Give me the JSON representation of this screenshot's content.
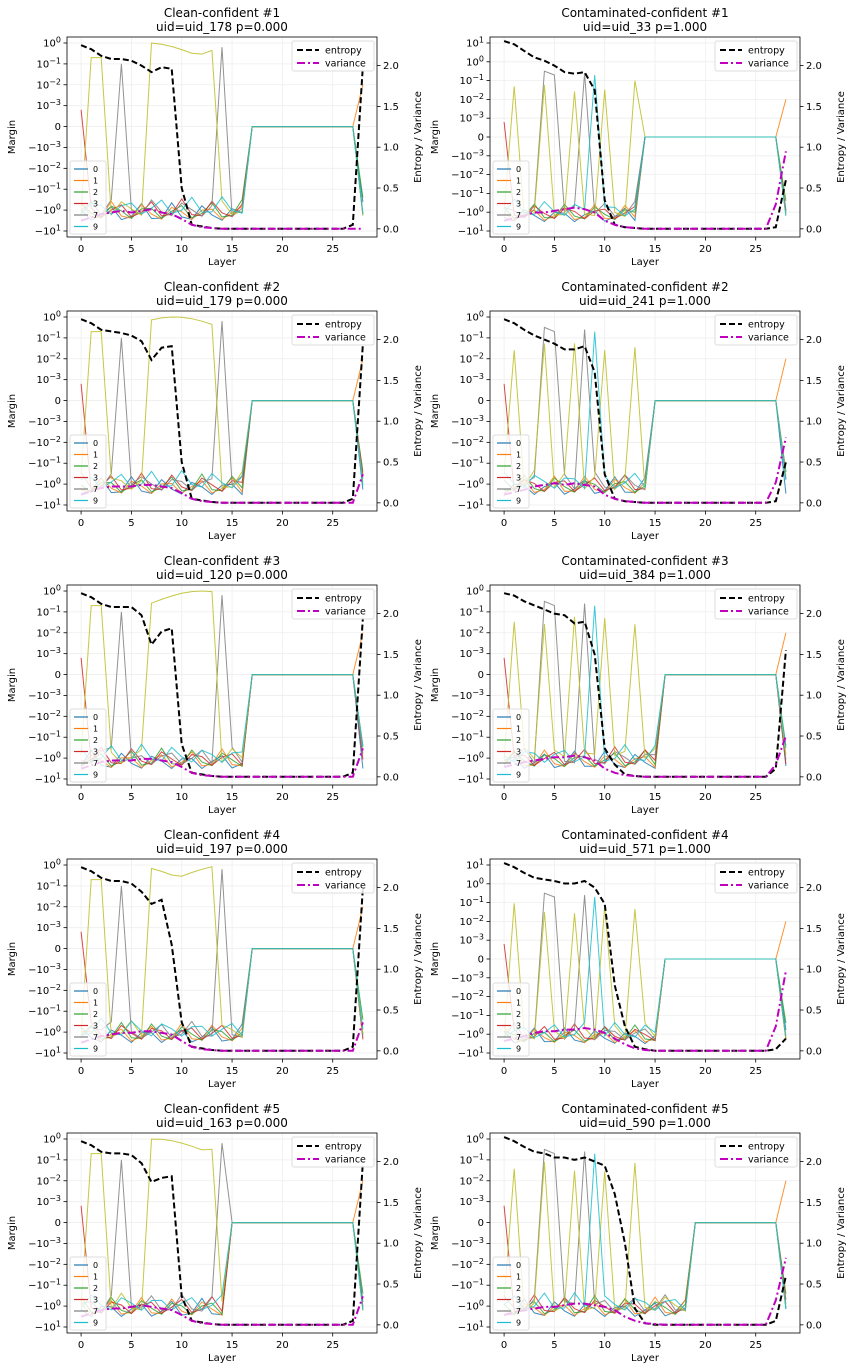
{
  "figure": {
    "series_colors": {
      "0": "#1f77b4",
      "1": "#ff7f0e",
      "2": "#2ca02c",
      "3": "#d62728",
      "7": "#7f7f7f",
      "8": "#bcbd22",
      "9": "#17becf",
      "entropy": "#000000",
      "variance": "#bf00bf"
    }
  },
  "chart_data": [
    {
      "type": "line",
      "title": "Clean-confident #1",
      "subtitle": "uid=uid_178   p=0.000",
      "xlabel": "Layer",
      "ylabel": "Margin",
      "y2label": "Entropy / Variance",
      "xlim": [
        -1.4,
        29.4
      ],
      "xticks": [
        0,
        5,
        10,
        15,
        20,
        25
      ],
      "y_scale": "symlog",
      "yticks": [
        "10^0",
        "10^-1",
        "10^-2",
        "10^-3",
        "0",
        "-10^-3",
        "-10^-2",
        "-10^-1",
        "-10^0",
        "-10^1"
      ],
      "y2lim": [
        -0.1,
        2.35
      ],
      "y2ticks": [
        "0.0",
        "0.5",
        "1.0",
        "1.5",
        "2.0"
      ],
      "grid": true,
      "legend_margin": {
        "location": "lower left",
        "entries": [
          "0",
          "1",
          "2",
          "3",
          "7",
          "9"
        ]
      },
      "legend_right": {
        "location": "upper right",
        "entries": [
          "entropy",
          "variance"
        ]
      },
      "entropy": [
        2.25,
        2.2,
        2.12,
        2.08,
        2.08,
        2.06,
        2.0,
        1.92,
        1.98,
        1.96,
        0.5,
        0.05,
        0.03,
        0.01,
        0.0,
        0.0,
        0.0,
        0.0,
        0.0,
        0.0,
        0.0,
        0.0,
        0.0,
        0.0,
        0.0,
        0.0,
        0.0,
        0.05,
        2.0
      ],
      "variance": [
        0.1,
        0.14,
        0.18,
        0.2,
        0.22,
        0.2,
        0.22,
        0.24,
        0.2,
        0.18,
        0.12,
        0.05,
        0.02,
        0.01,
        0.0,
        0.0,
        0.0,
        0.0,
        0.0,
        0.0,
        0.0,
        0.0,
        0.0,
        0.0,
        0.0,
        0.0,
        0.0,
        0.0,
        0.0
      ]
    },
    {
      "type": "line",
      "title": "Contaminated-confident #1",
      "subtitle": "uid=uid_33   p=1.000",
      "xlabel": "Layer",
      "ylabel": "Margin",
      "y2label": "Entropy / Variance",
      "xlim": [
        -1.4,
        29.4
      ],
      "xticks": [
        0,
        5,
        10,
        15,
        20,
        25
      ],
      "y_scale": "symlog",
      "yticks": [
        "10^1",
        "10^0",
        "10^-1",
        "10^-2",
        "10^-3",
        "0",
        "-10^-3",
        "-10^-2",
        "-10^-1",
        "-10^0",
        "-10^1"
      ],
      "y2lim": [
        -0.1,
        2.35
      ],
      "y2ticks": [
        "0.0",
        "0.5",
        "1.0",
        "1.5",
        "2.0"
      ],
      "grid": true,
      "legend_margin": {
        "location": "lower left",
        "entries": [
          "0",
          "1",
          "2",
          "3",
          "7",
          "9"
        ]
      },
      "legend_right": {
        "location": "upper right",
        "entries": [
          "entropy",
          "variance"
        ]
      },
      "entropy": [
        2.3,
        2.26,
        2.18,
        2.1,
        2.06,
        2.0,
        1.92,
        1.9,
        1.92,
        1.7,
        0.35,
        0.05,
        0.02,
        0.01,
        0.0,
        0.0,
        0.0,
        0.0,
        0.0,
        0.0,
        0.0,
        0.0,
        0.0,
        0.0,
        0.0,
        0.0,
        0.0,
        0.02,
        0.6
      ],
      "variance": [
        0.1,
        0.13,
        0.16,
        0.2,
        0.2,
        0.22,
        0.24,
        0.26,
        0.24,
        0.2,
        0.1,
        0.05,
        0.02,
        0.01,
        0.0,
        0.0,
        0.0,
        0.0,
        0.0,
        0.0,
        0.0,
        0.0,
        0.0,
        0.0,
        0.0,
        0.0,
        0.0,
        0.3,
        0.95
      ]
    },
    {
      "type": "line",
      "title": "Clean-confident #2",
      "subtitle": "uid=uid_179   p=0.000",
      "xlabel": "Layer",
      "ylabel": "Margin",
      "y2label": "Entropy / Variance",
      "xlim": [
        -1.4,
        29.4
      ],
      "xticks": [
        0,
        5,
        10,
        15,
        20,
        25
      ],
      "y_scale": "symlog",
      "yticks": [
        "10^0",
        "10^-1",
        "10^-2",
        "10^-3",
        "0",
        "-10^-3",
        "-10^-2",
        "-10^-1",
        "-10^0",
        "-10^1"
      ],
      "y2lim": [
        -0.1,
        2.35
      ],
      "y2ticks": [
        "0.0",
        "0.5",
        "1.0",
        "1.5",
        "2.0"
      ],
      "grid": true,
      "legend_margin": {
        "location": "lower left",
        "entries": [
          "0",
          "1",
          "2",
          "3",
          "7",
          "9"
        ]
      },
      "legend_right": {
        "location": "upper right",
        "entries": [
          "entropy",
          "variance"
        ]
      },
      "entropy": [
        2.25,
        2.2,
        2.12,
        2.1,
        2.08,
        2.05,
        1.98,
        1.75,
        1.9,
        1.92,
        0.5,
        0.05,
        0.03,
        0.01,
        0.0,
        0.0,
        0.0,
        0.0,
        0.0,
        0.0,
        0.0,
        0.0,
        0.0,
        0.0,
        0.0,
        0.0,
        0.0,
        0.05,
        1.95
      ],
      "variance": [
        0.1,
        0.14,
        0.18,
        0.2,
        0.2,
        0.2,
        0.22,
        0.22,
        0.2,
        0.18,
        0.12,
        0.05,
        0.02,
        0.01,
        0.0,
        0.0,
        0.0,
        0.0,
        0.0,
        0.0,
        0.0,
        0.0,
        0.0,
        0.0,
        0.0,
        0.0,
        0.0,
        0.0,
        0.35
      ]
    },
    {
      "type": "line",
      "title": "Contaminated-confident #2",
      "subtitle": "uid=uid_241   p=1.000",
      "xlabel": "Layer",
      "ylabel": "Margin",
      "y2label": "Entropy / Variance",
      "xlim": [
        -1.4,
        29.4
      ],
      "xticks": [
        0,
        5,
        10,
        15,
        20,
        25
      ],
      "y_scale": "symlog",
      "yticks": [
        "10^0",
        "10^-1",
        "10^-2",
        "10^-3",
        "0",
        "-10^-3",
        "-10^-2",
        "-10^-1",
        "-10^0",
        "-10^1"
      ],
      "y2lim": [
        -0.1,
        2.35
      ],
      "y2ticks": [
        "0.0",
        "0.5",
        "1.0",
        "1.5",
        "2.0"
      ],
      "grid": true,
      "legend_margin": {
        "location": "lower left",
        "entries": [
          "0",
          "1",
          "2",
          "3",
          "7",
          "9"
        ]
      },
      "legend_right": {
        "location": "upper right",
        "entries": [
          "entropy",
          "variance"
        ]
      },
      "entropy": [
        2.25,
        2.2,
        2.12,
        2.05,
        2.0,
        1.95,
        1.88,
        1.88,
        1.92,
        1.6,
        0.35,
        0.05,
        0.02,
        0.01,
        0.0,
        0.0,
        0.0,
        0.0,
        0.0,
        0.0,
        0.0,
        0.0,
        0.0,
        0.0,
        0.0,
        0.0,
        0.0,
        0.02,
        0.5
      ],
      "variance": [
        0.1,
        0.13,
        0.16,
        0.2,
        0.22,
        0.24,
        0.22,
        0.24,
        0.22,
        0.2,
        0.1,
        0.05,
        0.02,
        0.01,
        0.0,
        0.0,
        0.0,
        0.0,
        0.0,
        0.0,
        0.0,
        0.0,
        0.0,
        0.0,
        0.0,
        0.0,
        0.0,
        0.25,
        0.8
      ]
    },
    {
      "type": "line",
      "title": "Clean-confident #3",
      "subtitle": "uid=uid_120   p=0.000",
      "xlabel": "Layer",
      "ylabel": "Margin",
      "y2label": "Entropy / Variance",
      "xlim": [
        -1.4,
        29.4
      ],
      "xticks": [
        0,
        5,
        10,
        15,
        20,
        25
      ],
      "y_scale": "symlog",
      "yticks": [
        "10^0",
        "10^-1",
        "10^-2",
        "10^-3",
        "0",
        "-10^-3",
        "-10^-2",
        "-10^-1",
        "-10^0",
        "-10^1"
      ],
      "y2lim": [
        -0.1,
        2.35
      ],
      "y2ticks": [
        "0.0",
        "0.5",
        "1.0",
        "1.5",
        "2.0"
      ],
      "grid": true,
      "legend_margin": {
        "location": "lower left",
        "entries": [
          "0",
          "1",
          "2",
          "3",
          "7",
          "9"
        ]
      },
      "legend_right": {
        "location": "upper right",
        "entries": [
          "entropy",
          "variance"
        ]
      },
      "entropy": [
        2.25,
        2.2,
        2.12,
        2.08,
        2.08,
        2.08,
        1.98,
        1.62,
        1.78,
        1.82,
        0.4,
        0.05,
        0.03,
        0.01,
        0.0,
        0.0,
        0.0,
        0.0,
        0.0,
        0.0,
        0.0,
        0.0,
        0.0,
        0.0,
        0.0,
        0.0,
        0.0,
        0.05,
        1.95
      ],
      "variance": [
        0.1,
        0.14,
        0.18,
        0.2,
        0.2,
        0.2,
        0.22,
        0.22,
        0.2,
        0.18,
        0.12,
        0.05,
        0.02,
        0.01,
        0.0,
        0.0,
        0.0,
        0.0,
        0.0,
        0.0,
        0.0,
        0.0,
        0.0,
        0.0,
        0.0,
        0.0,
        0.0,
        0.0,
        0.35
      ]
    },
    {
      "type": "line",
      "title": "Contaminated-confident #3",
      "subtitle": "uid=uid_384   p=1.000",
      "xlabel": "Layer",
      "ylabel": "Margin",
      "y2label": "Entropy / Variance",
      "xlim": [
        -1.4,
        29.4
      ],
      "xticks": [
        0,
        5,
        10,
        15,
        20,
        25
      ],
      "y_scale": "symlog",
      "yticks": [
        "10^0",
        "10^-1",
        "10^-2",
        "10^-3",
        "0",
        "-10^-3",
        "-10^-2",
        "-10^-1",
        "-10^0",
        "-10^1"
      ],
      "y2lim": [
        -0.1,
        2.35
      ],
      "y2ticks": [
        "0.0",
        "0.5",
        "1.0",
        "1.5",
        "2.0"
      ],
      "grid": true,
      "legend_margin": {
        "location": "lower left",
        "entries": [
          "0",
          "1",
          "2",
          "3",
          "7",
          "9"
        ]
      },
      "legend_right": {
        "location": "upper right",
        "entries": [
          "entropy",
          "variance"
        ]
      },
      "entropy": [
        2.25,
        2.22,
        2.15,
        2.1,
        2.05,
        2.0,
        1.98,
        1.88,
        1.9,
        1.5,
        0.35,
        0.15,
        0.03,
        0.01,
        0.0,
        0.0,
        0.0,
        0.0,
        0.0,
        0.0,
        0.0,
        0.0,
        0.0,
        0.0,
        0.0,
        0.0,
        0.0,
        0.1,
        1.55
      ],
      "variance": [
        0.12,
        0.15,
        0.18,
        0.2,
        0.22,
        0.24,
        0.24,
        0.26,
        0.24,
        0.2,
        0.1,
        0.05,
        0.02,
        0.01,
        0.0,
        0.0,
        0.0,
        0.0,
        0.0,
        0.0,
        0.0,
        0.0,
        0.0,
        0.0,
        0.0,
        0.0,
        0.0,
        0.15,
        0.5
      ]
    },
    {
      "type": "line",
      "title": "Clean-confident #4",
      "subtitle": "uid=uid_197   p=0.000",
      "xlabel": "Layer",
      "ylabel": "Margin",
      "y2label": "Entropy / Variance",
      "xlim": [
        -1.4,
        29.4
      ],
      "xticks": [
        0,
        5,
        10,
        15,
        20,
        25
      ],
      "y_scale": "symlog",
      "yticks": [
        "10^0",
        "10^-1",
        "10^-2",
        "10^-3",
        "0",
        "-10^-3",
        "-10^-2",
        "-10^-1",
        "-10^0",
        "-10^1"
      ],
      "y2lim": [
        -0.1,
        2.35
      ],
      "y2ticks": [
        "0.0",
        "0.5",
        "1.0",
        "1.5",
        "2.0"
      ],
      "grid": true,
      "legend_margin": {
        "location": "lower left",
        "entries": [
          "0",
          "1",
          "2",
          "3",
          "7",
          "9"
        ]
      },
      "legend_right": {
        "location": "upper right",
        "entries": [
          "entropy",
          "variance"
        ]
      },
      "entropy": [
        2.25,
        2.2,
        2.12,
        2.08,
        2.08,
        2.05,
        1.95,
        1.8,
        1.85,
        1.3,
        0.35,
        0.05,
        0.03,
        0.01,
        0.0,
        0.0,
        0.0,
        0.0,
        0.0,
        0.0,
        0.0,
        0.0,
        0.0,
        0.0,
        0.0,
        0.0,
        0.0,
        0.05,
        2.0
      ],
      "variance": [
        0.1,
        0.14,
        0.18,
        0.2,
        0.22,
        0.22,
        0.24,
        0.24,
        0.22,
        0.2,
        0.12,
        0.05,
        0.02,
        0.01,
        0.0,
        0.0,
        0.0,
        0.0,
        0.0,
        0.0,
        0.0,
        0.0,
        0.0,
        0.0,
        0.0,
        0.0,
        0.0,
        0.0,
        0.35
      ]
    },
    {
      "type": "line",
      "title": "Contaminated-confident #4",
      "subtitle": "uid=uid_571   p=1.000",
      "xlabel": "Layer",
      "ylabel": "Margin",
      "y2label": "Entropy / Variance",
      "xlim": [
        -1.4,
        29.4
      ],
      "xticks": [
        0,
        5,
        10,
        15,
        20,
        25
      ],
      "y_scale": "symlog",
      "yticks": [
        "10^1",
        "10^0",
        "10^-1",
        "10^-2",
        "10^-3",
        "0",
        "-10^-3",
        "-10^-2",
        "-10^-1",
        "-10^0",
        "-10^1"
      ],
      "y2lim": [
        -0.1,
        2.35
      ],
      "y2ticks": [
        "0.0",
        "0.5",
        "1.0",
        "1.5",
        "2.0"
      ],
      "grid": true,
      "legend_margin": {
        "location": "lower left",
        "entries": [
          "0",
          "1",
          "2",
          "3",
          "7",
          "9"
        ]
      },
      "legend_right": {
        "location": "upper right",
        "entries": [
          "entropy",
          "variance"
        ]
      },
      "entropy": [
        2.3,
        2.25,
        2.18,
        2.12,
        2.1,
        2.08,
        2.05,
        2.05,
        2.08,
        2.0,
        1.8,
        0.8,
        0.3,
        0.05,
        0.02,
        0.0,
        0.0,
        0.0,
        0.0,
        0.0,
        0.0,
        0.0,
        0.0,
        0.0,
        0.0,
        0.0,
        0.0,
        0.02,
        0.15
      ],
      "variance": [
        0.12,
        0.15,
        0.18,
        0.22,
        0.24,
        0.24,
        0.26,
        0.26,
        0.28,
        0.26,
        0.22,
        0.15,
        0.08,
        0.03,
        0.01,
        0.0,
        0.0,
        0.0,
        0.0,
        0.0,
        0.0,
        0.0,
        0.0,
        0.0,
        0.0,
        0.0,
        0.0,
        0.3,
        0.98
      ]
    },
    {
      "type": "line",
      "title": "Clean-confident #5",
      "subtitle": "uid=uid_163   p=0.000",
      "xlabel": "Layer",
      "ylabel": "Margin",
      "y2label": "Entropy / Variance",
      "xlim": [
        -1.4,
        29.4
      ],
      "xticks": [
        0,
        5,
        10,
        15,
        20,
        25
      ],
      "y_scale": "symlog",
      "yticks": [
        "10^0",
        "10^-1",
        "10^-2",
        "10^-3",
        "0",
        "-10^-3",
        "-10^-2",
        "-10^-1",
        "-10^0",
        "-10^1"
      ],
      "y2lim": [
        -0.1,
        2.35
      ],
      "y2ticks": [
        "0.0",
        "0.5",
        "1.0",
        "1.5",
        "2.0"
      ],
      "grid": true,
      "legend_margin": {
        "location": "lower left",
        "entries": [
          "0",
          "1",
          "2",
          "3",
          "7",
          "9"
        ]
      },
      "legend_right": {
        "location": "upper right",
        "entries": [
          "entropy",
          "variance"
        ]
      },
      "entropy": [
        2.25,
        2.2,
        2.12,
        2.1,
        2.1,
        2.08,
        1.98,
        1.75,
        1.8,
        1.82,
        0.35,
        0.05,
        0.03,
        0.01,
        0.0,
        0.0,
        0.0,
        0.0,
        0.0,
        0.0,
        0.0,
        0.0,
        0.0,
        0.0,
        0.0,
        0.0,
        0.0,
        0.05,
        2.0
      ],
      "variance": [
        0.1,
        0.14,
        0.18,
        0.2,
        0.2,
        0.22,
        0.24,
        0.22,
        0.2,
        0.18,
        0.12,
        0.05,
        0.02,
        0.01,
        0.0,
        0.0,
        0.0,
        0.0,
        0.0,
        0.0,
        0.0,
        0.0,
        0.0,
        0.0,
        0.0,
        0.0,
        0.0,
        0.0,
        0.35
      ]
    },
    {
      "type": "line",
      "title": "Contaminated-confident #5",
      "subtitle": "uid=uid_590   p=1.000",
      "xlabel": "Layer",
      "ylabel": "Margin",
      "y2label": "Entropy / Variance",
      "xlim": [
        -1.4,
        29.4
      ],
      "xticks": [
        0,
        5,
        10,
        15,
        20,
        25
      ],
      "y_scale": "symlog",
      "yticks": [
        "10^0",
        "10^-1",
        "10^-2",
        "10^-3",
        "0",
        "-10^-3",
        "-10^-2",
        "-10^-1",
        "-10^0",
        "-10^1"
      ],
      "y2lim": [
        -0.1,
        2.35
      ],
      "y2ticks": [
        "0.0",
        "0.5",
        "1.0",
        "1.5",
        "2.0"
      ],
      "grid": true,
      "legend_margin": {
        "location": "lower left",
        "entries": [
          "0",
          "1",
          "2",
          "3",
          "7",
          "9"
        ]
      },
      "legend_right": {
        "location": "upper right",
        "entries": [
          "entropy",
          "variance"
        ]
      },
      "entropy": [
        2.3,
        2.25,
        2.18,
        2.12,
        2.1,
        2.05,
        2.05,
        2.02,
        2.05,
        2.0,
        1.95,
        1.6,
        1.0,
        0.2,
        0.02,
        0.0,
        0.0,
        0.0,
        0.0,
        0.0,
        0.0,
        0.0,
        0.0,
        0.0,
        0.0,
        0.0,
        0.0,
        0.05,
        0.6
      ],
      "variance": [
        0.12,
        0.15,
        0.18,
        0.2,
        0.22,
        0.22,
        0.24,
        0.26,
        0.26,
        0.24,
        0.22,
        0.18,
        0.1,
        0.05,
        0.02,
        0.01,
        0.0,
        0.0,
        0.0,
        0.0,
        0.0,
        0.0,
        0.0,
        0.0,
        0.0,
        0.0,
        0.0,
        0.3,
        0.82
      ]
    }
  ]
}
